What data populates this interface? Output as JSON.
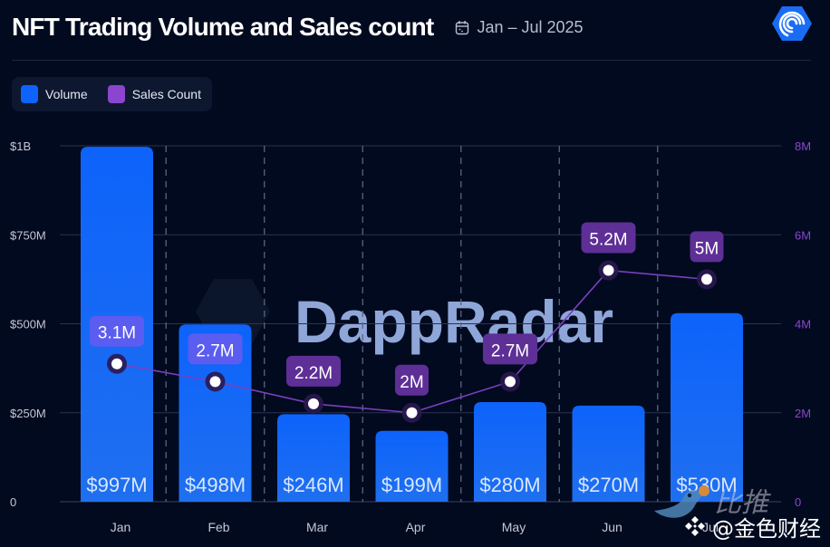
{
  "header": {
    "title": "NFT Trading Volume and Sales count",
    "date_range": "Jan – Jul 2025",
    "logo_icon": "dappradar-logo-icon",
    "calendar_icon": "calendar-icon"
  },
  "legend": [
    {
      "label": "Volume",
      "color": "#0d63fb"
    },
    {
      "label": "Sales Count",
      "color": "#8b45cf"
    }
  ],
  "watermark": {
    "background_text": "DappRadar",
    "overlay_line1": "比推",
    "overlay_line2": "@金色财经"
  },
  "chart_data": {
    "type": "bar",
    "title": "NFT Trading Volume and Sales count",
    "subtitle": "Jan – Jul 2025",
    "categories": [
      "Jan",
      "Feb",
      "Mar",
      "Apr",
      "May",
      "Jun",
      "Jul"
    ],
    "series": [
      {
        "name": "Volume",
        "type": "bar",
        "axis": "left",
        "unit": "USD millions",
        "values": [
          997,
          498,
          246,
          199,
          280,
          270,
          530
        ],
        "labels": [
          "$997M",
          "$498M",
          "$246M",
          "$199M",
          "$280M",
          "$270M",
          "$530M"
        ],
        "color": "#0d63fb"
      },
      {
        "name": "Sales Count",
        "type": "line",
        "axis": "right",
        "unit": "millions",
        "values": [
          3.1,
          2.7,
          2.2,
          2.0,
          2.7,
          5.2,
          5.0
        ],
        "labels": [
          "3.1M",
          "2.7M",
          "2.2M",
          "2M",
          "2.7M",
          "5.2M",
          "5M"
        ],
        "color": "#8b45cf"
      }
    ],
    "y_left": {
      "range": [
        0,
        1000
      ],
      "ticks": [
        0,
        250,
        500,
        750,
        1000
      ],
      "tick_labels": [
        "0",
        "$250M",
        "$500M",
        "$750M",
        "$1B"
      ]
    },
    "y_right": {
      "range": [
        0,
        8
      ],
      "ticks": [
        0,
        2,
        4,
        6,
        8
      ],
      "tick_labels": [
        "0",
        "2M",
        "4M",
        "6M",
        "8M"
      ],
      "color": "#8b45cf"
    },
    "grid": true,
    "legend_position": "top-left",
    "xlabel": "",
    "ylabel": ""
  }
}
